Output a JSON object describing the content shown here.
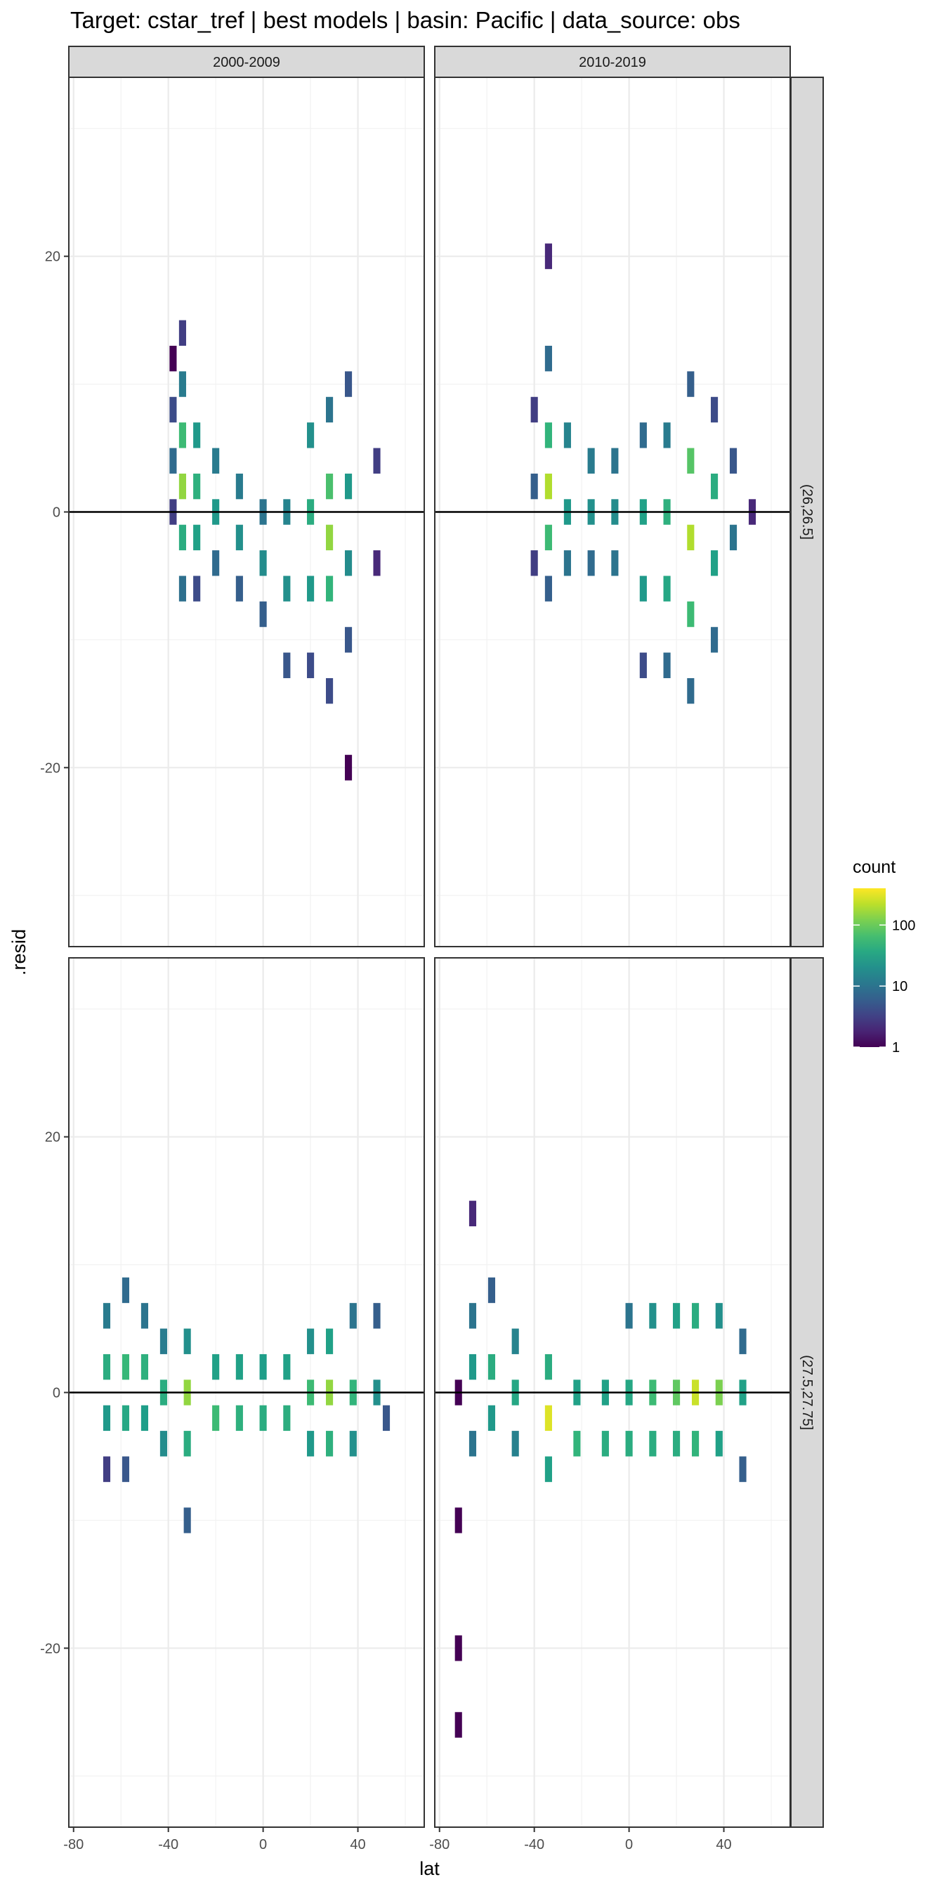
{
  "title": "Target: cstar_tref | best models | basin: Pacific | data_source: obs",
  "chart_data": {
    "type": "heatmap",
    "title": "Target: cstar_tref | best models | basin: Pacific | data_source: obs",
    "xlabel": "lat",
    "ylabel": ".resid",
    "xlim": [
      -82,
      68
    ],
    "ylim": [
      -34,
      34
    ],
    "xticks": [
      -80,
      -40,
      0,
      40
    ],
    "yticks": [
      -20,
      0,
      20
    ],
    "grid": true,
    "hline": 0,
    "bin_width": 3,
    "bin_height": 2,
    "legend": {
      "title": "count",
      "scale": "log10",
      "breaks": [
        1,
        10,
        100
      ],
      "max": 400,
      "palette": "viridis",
      "position": "right"
    },
    "facets": [
      {
        "col_label": "2000-2009",
        "row_label": "(26,26.5]",
        "bins": [
          {
            "x": -38,
            "y": 12,
            "count": 1
          },
          {
            "x": -38,
            "y": 8,
            "count": 4
          },
          {
            "x": -38,
            "y": 4,
            "count": 8
          },
          {
            "x": -38,
            "y": 0,
            "count": 3
          },
          {
            "x": -34,
            "y": 14,
            "count": 3
          },
          {
            "x": -34,
            "y": 10,
            "count": 12
          },
          {
            "x": -34,
            "y": 6,
            "count": 60
          },
          {
            "x": -34,
            "y": 2,
            "count": 150
          },
          {
            "x": -34,
            "y": -2,
            "count": 40
          },
          {
            "x": -34,
            "y": -6,
            "count": 9
          },
          {
            "x": -28,
            "y": 6,
            "count": 25
          },
          {
            "x": -28,
            "y": 2,
            "count": 45
          },
          {
            "x": -28,
            "y": -2,
            "count": 30
          },
          {
            "x": -28,
            "y": -6,
            "count": 4
          },
          {
            "x": -20,
            "y": 4,
            "count": 12
          },
          {
            "x": -20,
            "y": 0,
            "count": 25
          },
          {
            "x": -20,
            "y": -4,
            "count": 8
          },
          {
            "x": -10,
            "y": 2,
            "count": 12
          },
          {
            "x": -10,
            "y": -2,
            "count": 20
          },
          {
            "x": -10,
            "y": -6,
            "count": 6
          },
          {
            "x": 0,
            "y": 0,
            "count": 10
          },
          {
            "x": 0,
            "y": -4,
            "count": 18
          },
          {
            "x": 0,
            "y": -8,
            "count": 6
          },
          {
            "x": 10,
            "y": 0,
            "count": 15
          },
          {
            "x": 10,
            "y": -6,
            "count": 20
          },
          {
            "x": 10,
            "y": -12,
            "count": 5
          },
          {
            "x": 20,
            "y": 6,
            "count": 20
          },
          {
            "x": 20,
            "y": 0,
            "count": 40
          },
          {
            "x": 20,
            "y": -6,
            "count": 25
          },
          {
            "x": 20,
            "y": -12,
            "count": 4
          },
          {
            "x": 28,
            "y": 8,
            "count": 10
          },
          {
            "x": 28,
            "y": 2,
            "count": 70
          },
          {
            "x": 28,
            "y": -2,
            "count": 150
          },
          {
            "x": 28,
            "y": -6,
            "count": 50
          },
          {
            "x": 28,
            "y": -14,
            "count": 4
          },
          {
            "x": 36,
            "y": 10,
            "count": 5
          },
          {
            "x": 36,
            "y": 2,
            "count": 25
          },
          {
            "x": 36,
            "y": -4,
            "count": 18
          },
          {
            "x": 36,
            "y": -10,
            "count": 5
          },
          {
            "x": 36,
            "y": -20,
            "count": 1
          },
          {
            "x": 48,
            "y": 4,
            "count": 3
          },
          {
            "x": 48,
            "y": -4,
            "count": 2
          }
        ]
      },
      {
        "col_label": "2010-2019",
        "row_label": "(26,26.5]",
        "bins": [
          {
            "x": -40,
            "y": 8,
            "count": 3
          },
          {
            "x": -40,
            "y": 2,
            "count": 6
          },
          {
            "x": -40,
            "y": -4,
            "count": 3
          },
          {
            "x": -34,
            "y": 20,
            "count": 2
          },
          {
            "x": -34,
            "y": 12,
            "count": 8
          },
          {
            "x": -34,
            "y": 6,
            "count": 50
          },
          {
            "x": -34,
            "y": 2,
            "count": 200
          },
          {
            "x": -34,
            "y": -2,
            "count": 60
          },
          {
            "x": -34,
            "y": -6,
            "count": 6
          },
          {
            "x": -26,
            "y": 6,
            "count": 15
          },
          {
            "x": -26,
            "y": 0,
            "count": 25
          },
          {
            "x": -26,
            "y": -4,
            "count": 10
          },
          {
            "x": -16,
            "y": 4,
            "count": 12
          },
          {
            "x": -16,
            "y": 0,
            "count": 20
          },
          {
            "x": -16,
            "y": -4,
            "count": 8
          },
          {
            "x": -6,
            "y": 4,
            "count": 10
          },
          {
            "x": -6,
            "y": 0,
            "count": 18
          },
          {
            "x": -6,
            "y": -4,
            "count": 10
          },
          {
            "x": 6,
            "y": 6,
            "count": 8
          },
          {
            "x": 6,
            "y": 0,
            "count": 30
          },
          {
            "x": 6,
            "y": -6,
            "count": 25
          },
          {
            "x": 6,
            "y": -12,
            "count": 4
          },
          {
            "x": 16,
            "y": 6,
            "count": 12
          },
          {
            "x": 16,
            "y": 0,
            "count": 45
          },
          {
            "x": 16,
            "y": -6,
            "count": 35
          },
          {
            "x": 16,
            "y": -12,
            "count": 8
          },
          {
            "x": 26,
            "y": 10,
            "count": 6
          },
          {
            "x": 26,
            "y": 4,
            "count": 80
          },
          {
            "x": 26,
            "y": -2,
            "count": 200
          },
          {
            "x": 26,
            "y": -8,
            "count": 60
          },
          {
            "x": 26,
            "y": -14,
            "count": 8
          },
          {
            "x": 36,
            "y": 8,
            "count": 4
          },
          {
            "x": 36,
            "y": 2,
            "count": 40
          },
          {
            "x": 36,
            "y": -4,
            "count": 30
          },
          {
            "x": 36,
            "y": -10,
            "count": 8
          },
          {
            "x": 44,
            "y": 4,
            "count": 5
          },
          {
            "x": 44,
            "y": -2,
            "count": 10
          },
          {
            "x": 52,
            "y": 0,
            "count": 2
          }
        ]
      },
      {
        "col_label": "2000-2009",
        "row_label": "(27.5,27.75]",
        "bins": [
          {
            "x": -66,
            "y": 6,
            "count": 12
          },
          {
            "x": -66,
            "y": 2,
            "count": 40
          },
          {
            "x": -66,
            "y": -2,
            "count": 25
          },
          {
            "x": -66,
            "y": -6,
            "count": 3
          },
          {
            "x": -58,
            "y": 8,
            "count": 8
          },
          {
            "x": -58,
            "y": 2,
            "count": 55
          },
          {
            "x": -58,
            "y": -2,
            "count": 35
          },
          {
            "x": -58,
            "y": -6,
            "count": 5
          },
          {
            "x": -50,
            "y": 6,
            "count": 10
          },
          {
            "x": -50,
            "y": 2,
            "count": 45
          },
          {
            "x": -50,
            "y": -2,
            "count": 28
          },
          {
            "x": -42,
            "y": 4,
            "count": 12
          },
          {
            "x": -42,
            "y": 0,
            "count": 40
          },
          {
            "x": -42,
            "y": -4,
            "count": 18
          },
          {
            "x": -32,
            "y": 4,
            "count": 20
          },
          {
            "x": -32,
            "y": 0,
            "count": 150
          },
          {
            "x": -32,
            "y": -4,
            "count": 40
          },
          {
            "x": -32,
            "y": -10,
            "count": 6
          },
          {
            "x": -20,
            "y": 2,
            "count": 30
          },
          {
            "x": -20,
            "y": -2,
            "count": 60
          },
          {
            "x": -10,
            "y": 2,
            "count": 30
          },
          {
            "x": -10,
            "y": -2,
            "count": 45
          },
          {
            "x": 0,
            "y": 2,
            "count": 28
          },
          {
            "x": 0,
            "y": -2,
            "count": 40
          },
          {
            "x": 10,
            "y": 2,
            "count": 30
          },
          {
            "x": 10,
            "y": -2,
            "count": 42
          },
          {
            "x": 20,
            "y": 4,
            "count": 20
          },
          {
            "x": 20,
            "y": 0,
            "count": 60
          },
          {
            "x": 20,
            "y": -4,
            "count": 25
          },
          {
            "x": 28,
            "y": 4,
            "count": 30
          },
          {
            "x": 28,
            "y": 0,
            "count": 150
          },
          {
            "x": 28,
            "y": -4,
            "count": 45
          },
          {
            "x": 38,
            "y": 6,
            "count": 10
          },
          {
            "x": 38,
            "y": 0,
            "count": 50
          },
          {
            "x": 38,
            "y": -4,
            "count": 20
          },
          {
            "x": 48,
            "y": 6,
            "count": 6
          },
          {
            "x": 48,
            "y": 0,
            "count": 20
          },
          {
            "x": 52,
            "y": -2,
            "count": 5
          }
        ]
      },
      {
        "col_label": "2010-2019",
        "row_label": "(27.5,27.75]",
        "bins": [
          {
            "x": -72,
            "y": 0,
            "count": 1
          },
          {
            "x": -72,
            "y": -10,
            "count": 1
          },
          {
            "x": -72,
            "y": -20,
            "count": 1
          },
          {
            "x": -72,
            "y": -26,
            "count": 1
          },
          {
            "x": -66,
            "y": 14,
            "count": 2
          },
          {
            "x": -66,
            "y": 6,
            "count": 10
          },
          {
            "x": -66,
            "y": 2,
            "count": 25
          },
          {
            "x": -66,
            "y": -4,
            "count": 10
          },
          {
            "x": -58,
            "y": 8,
            "count": 6
          },
          {
            "x": -58,
            "y": 2,
            "count": 40
          },
          {
            "x": -58,
            "y": -2,
            "count": 25
          },
          {
            "x": -48,
            "y": 4,
            "count": 15
          },
          {
            "x": -48,
            "y": 0,
            "count": 35
          },
          {
            "x": -48,
            "y": -4,
            "count": 14
          },
          {
            "x": -34,
            "y": 2,
            "count": 40
          },
          {
            "x": -34,
            "y": -2,
            "count": 300
          },
          {
            "x": -34,
            "y": -6,
            "count": 30
          },
          {
            "x": -22,
            "y": 0,
            "count": 30
          },
          {
            "x": -22,
            "y": -4,
            "count": 50
          },
          {
            "x": -10,
            "y": 0,
            "count": 30
          },
          {
            "x": -10,
            "y": -4,
            "count": 40
          },
          {
            "x": 0,
            "y": 6,
            "count": 10
          },
          {
            "x": 0,
            "y": 0,
            "count": 35
          },
          {
            "x": 0,
            "y": -4,
            "count": 40
          },
          {
            "x": 10,
            "y": 6,
            "count": 20
          },
          {
            "x": 10,
            "y": 0,
            "count": 60
          },
          {
            "x": 10,
            "y": -4,
            "count": 40
          },
          {
            "x": 20,
            "y": 6,
            "count": 30
          },
          {
            "x": 20,
            "y": 0,
            "count": 90
          },
          {
            "x": 20,
            "y": -4,
            "count": 40
          },
          {
            "x": 28,
            "y": 6,
            "count": 40
          },
          {
            "x": 28,
            "y": 0,
            "count": 250
          },
          {
            "x": 28,
            "y": -4,
            "count": 50
          },
          {
            "x": 38,
            "y": 6,
            "count": 20
          },
          {
            "x": 38,
            "y": 0,
            "count": 120
          },
          {
            "x": 38,
            "y": -4,
            "count": 30
          },
          {
            "x": 48,
            "y": 4,
            "count": 8
          },
          {
            "x": 48,
            "y": 0,
            "count": 30
          },
          {
            "x": 48,
            "y": -6,
            "count": 6
          }
        ]
      }
    ]
  }
}
